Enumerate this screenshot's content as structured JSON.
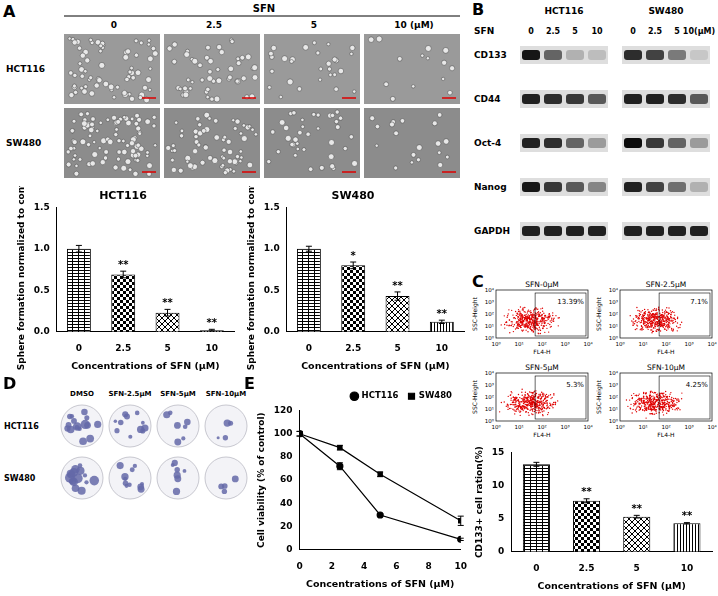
{
  "chart_data": [
    {
      "type": "bar",
      "title": "HCT116",
      "categories": [
        "0",
        "2.5",
        "5",
        "10"
      ],
      "values": [
        1.0,
        0.69,
        0.23,
        0.02
      ],
      "errors": [
        0.04,
        0.04,
        0.04,
        0.01
      ],
      "annotations": [
        null,
        "**",
        "**",
        "**"
      ],
      "x_label": "Concentrations of SFN (μM)",
      "y_label": "Sphere formation normalized to control",
      "ylim": [
        0,
        1.5
      ],
      "yticks": [
        {
          "value": 0,
          "label": "0.0"
        },
        {
          "value": 0.5,
          "label": "0.5"
        },
        {
          "value": 1,
          "label": "1.0"
        },
        {
          "value": 1.5,
          "label": "1.5"
        }
      ],
      "color": "#000000",
      "grid": false
    },
    {
      "type": "bar",
      "title": "SW480",
      "categories": [
        "0",
        "2.5",
        "5",
        "10"
      ],
      "values": [
        1.0,
        0.8,
        0.43,
        0.12
      ],
      "errors": [
        0.03,
        0.04,
        0.05,
        0.02
      ],
      "annotations": [
        null,
        "*",
        "**",
        "**"
      ],
      "x_label": "Concentrations of SFN (μM)",
      "y_label": "Sphere formation normalized to control",
      "ylim": [
        0,
        1.5
      ],
      "yticks": [
        {
          "value": 0,
          "label": "0.0"
        },
        {
          "value": 0.5,
          "label": "0.5"
        },
        {
          "value": 1,
          "label": "1.0"
        },
        {
          "value": 1.5,
          "label": "1.5"
        }
      ],
      "color": "#000000",
      "grid": false
    },
    {
      "type": "line",
      "x": [
        0,
        2.5,
        5,
        10
      ],
      "series": [
        {
          "name": "HCT116",
          "color": "#000000",
          "marker": "circle",
          "values": [
            100,
            72,
            30,
            9
          ],
          "errors": [
            2,
            3,
            1,
            1
          ]
        },
        {
          "name": "SW480",
          "color": "#000000",
          "marker": "square",
          "values": [
            100,
            88,
            65,
            25
          ],
          "errors": [
            2,
            2,
            2,
            4
          ]
        }
      ],
      "x_label": "Concentrations of SFN (μM)",
      "y_label": "Cell viability (% of control)",
      "xlim": [
        0,
        10
      ],
      "xticks": [
        0,
        2,
        4,
        6,
        8,
        10
      ],
      "ylim": [
        0,
        120
      ],
      "yticks": [
        0,
        20,
        40,
        60,
        80,
        100,
        120
      ],
      "legend": "top-right",
      "grid": false
    },
    {
      "type": "bar",
      "categories": [
        "0",
        "2.5",
        "5",
        "10"
      ],
      "values": [
        13.2,
        7.7,
        5.3,
        4.3
      ],
      "errors": [
        0.3,
        0.3,
        0.2,
        0.1
      ],
      "annotations": [
        null,
        "**",
        "**",
        "**"
      ],
      "x_label": "Concentrations of SFN (μM)",
      "y_label": "CD133+ cell ration(%)",
      "ylim": [
        0,
        15
      ],
      "yticks": [
        0,
        5,
        10,
        15
      ],
      "color": "#000000",
      "grid": false
    }
  ],
  "figure": {
    "panel_labels": [
      "A",
      "B",
      "C",
      "D",
      "E"
    ],
    "micrographs": {
      "header": "SFN",
      "columns": [
        "0",
        "2.5",
        "5",
        "10 (μM)"
      ],
      "rows": [
        "HCT116",
        "SW480"
      ]
    },
    "western_blot": {
      "treatment": "SFN",
      "groups": [
        {
          "name": "HCT116",
          "lanes": [
            "0",
            "2.5",
            "5",
            "10"
          ]
        },
        {
          "name": "SW480",
          "lanes": [
            "0",
            "2.5",
            "5",
            "10(μM)"
          ]
        }
      ],
      "proteins": [
        {
          "name": "CD133",
          "intensity": [
            [
              0.9,
              0.55,
              0.2,
              0.15
            ],
            [
              0.8,
              0.7,
              0.45,
              0.1
            ]
          ]
        },
        {
          "name": "CD44",
          "intensity": [
            [
              0.85,
              0.8,
              0.75,
              0.6
            ],
            [
              0.85,
              0.85,
              0.8,
              0.6
            ]
          ]
        },
        {
          "name": "Oct-4",
          "intensity": [
            [
              0.85,
              0.8,
              0.55,
              0.3
            ],
            [
              0.95,
              0.75,
              0.55,
              0.3
            ]
          ]
        },
        {
          "name": "Nanog",
          "intensity": [
            [
              0.9,
              0.75,
              0.6,
              0.4
            ],
            [
              0.85,
              0.7,
              0.5,
              0.2
            ]
          ]
        },
        {
          "name": "GAPDH",
          "intensity": [
            [
              0.85,
              0.85,
              0.85,
              0.85
            ],
            [
              0.85,
              0.85,
              0.85,
              0.85
            ]
          ]
        }
      ]
    },
    "flow_cytometry": {
      "x_label": "FL4-H",
      "y_label": "SSC-Height",
      "axis_tick_labels": [
        "10⁰",
        "10¹",
        "10²",
        "10³",
        "10⁴"
      ],
      "plots": [
        {
          "title": "SFN-0μM",
          "gate_percent": {
            "value": 13.39,
            "label": "13.39%"
          }
        },
        {
          "title": "SFN-2.5μM",
          "gate_percent": {
            "value": 7.1,
            "label": "7.1%"
          }
        },
        {
          "title": "SFN-5μM",
          "gate_percent": {
            "value": 5.3,
            "label": "5.3%"
          }
        },
        {
          "title": "SFN-10μM",
          "gate_percent": {
            "value": 4.25,
            "label": "4.25%"
          }
        }
      ]
    },
    "colony_assay": {
      "columns": [
        "DMSO",
        "SFN-2.5μM",
        "SFN-5μM",
        "SFN-10μM"
      ],
      "rows": [
        "HCT116",
        "SW480"
      ]
    }
  }
}
